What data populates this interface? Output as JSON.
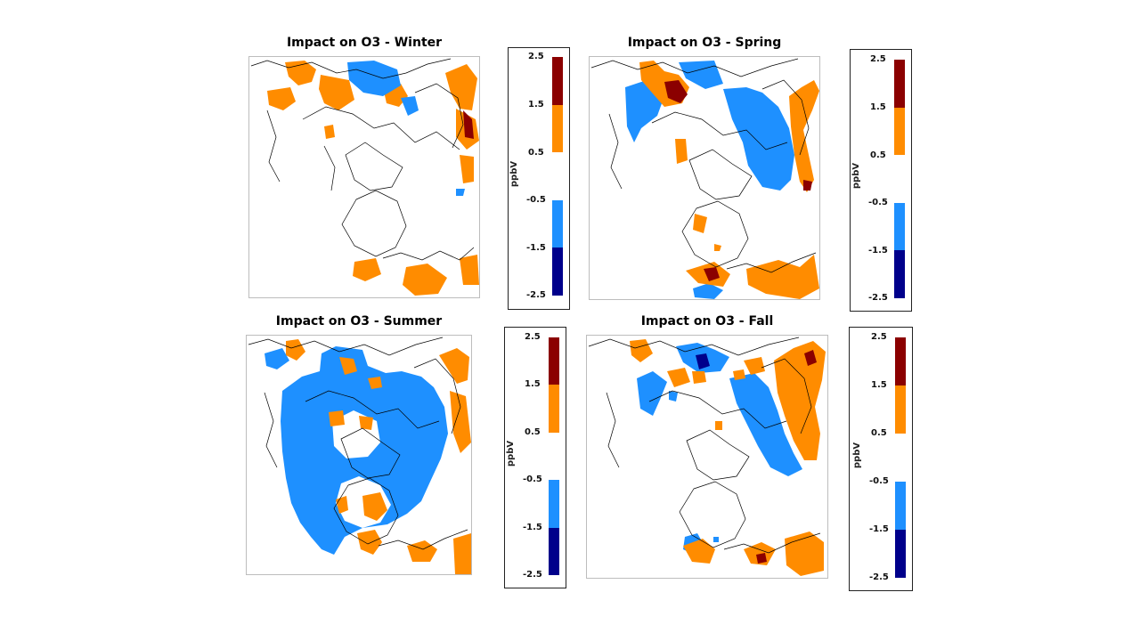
{
  "panels": [
    {
      "title": "Impact on O3 - Winter"
    },
    {
      "title": "Impact on O3 - Spring"
    },
    {
      "title": "Impact on O3 - Summer"
    },
    {
      "title": "Impact on O3 - Fall"
    }
  ],
  "colorbar": {
    "unit": "ppbV",
    "ticks": [
      "2.5",
      "1.5",
      "0.5",
      "-0.5",
      "-1.5",
      "-2.5"
    ],
    "colors": [
      "#8b0000",
      "#ff8c00",
      "#ffffff",
      "#1e90ff",
      "#00008b"
    ]
  }
}
